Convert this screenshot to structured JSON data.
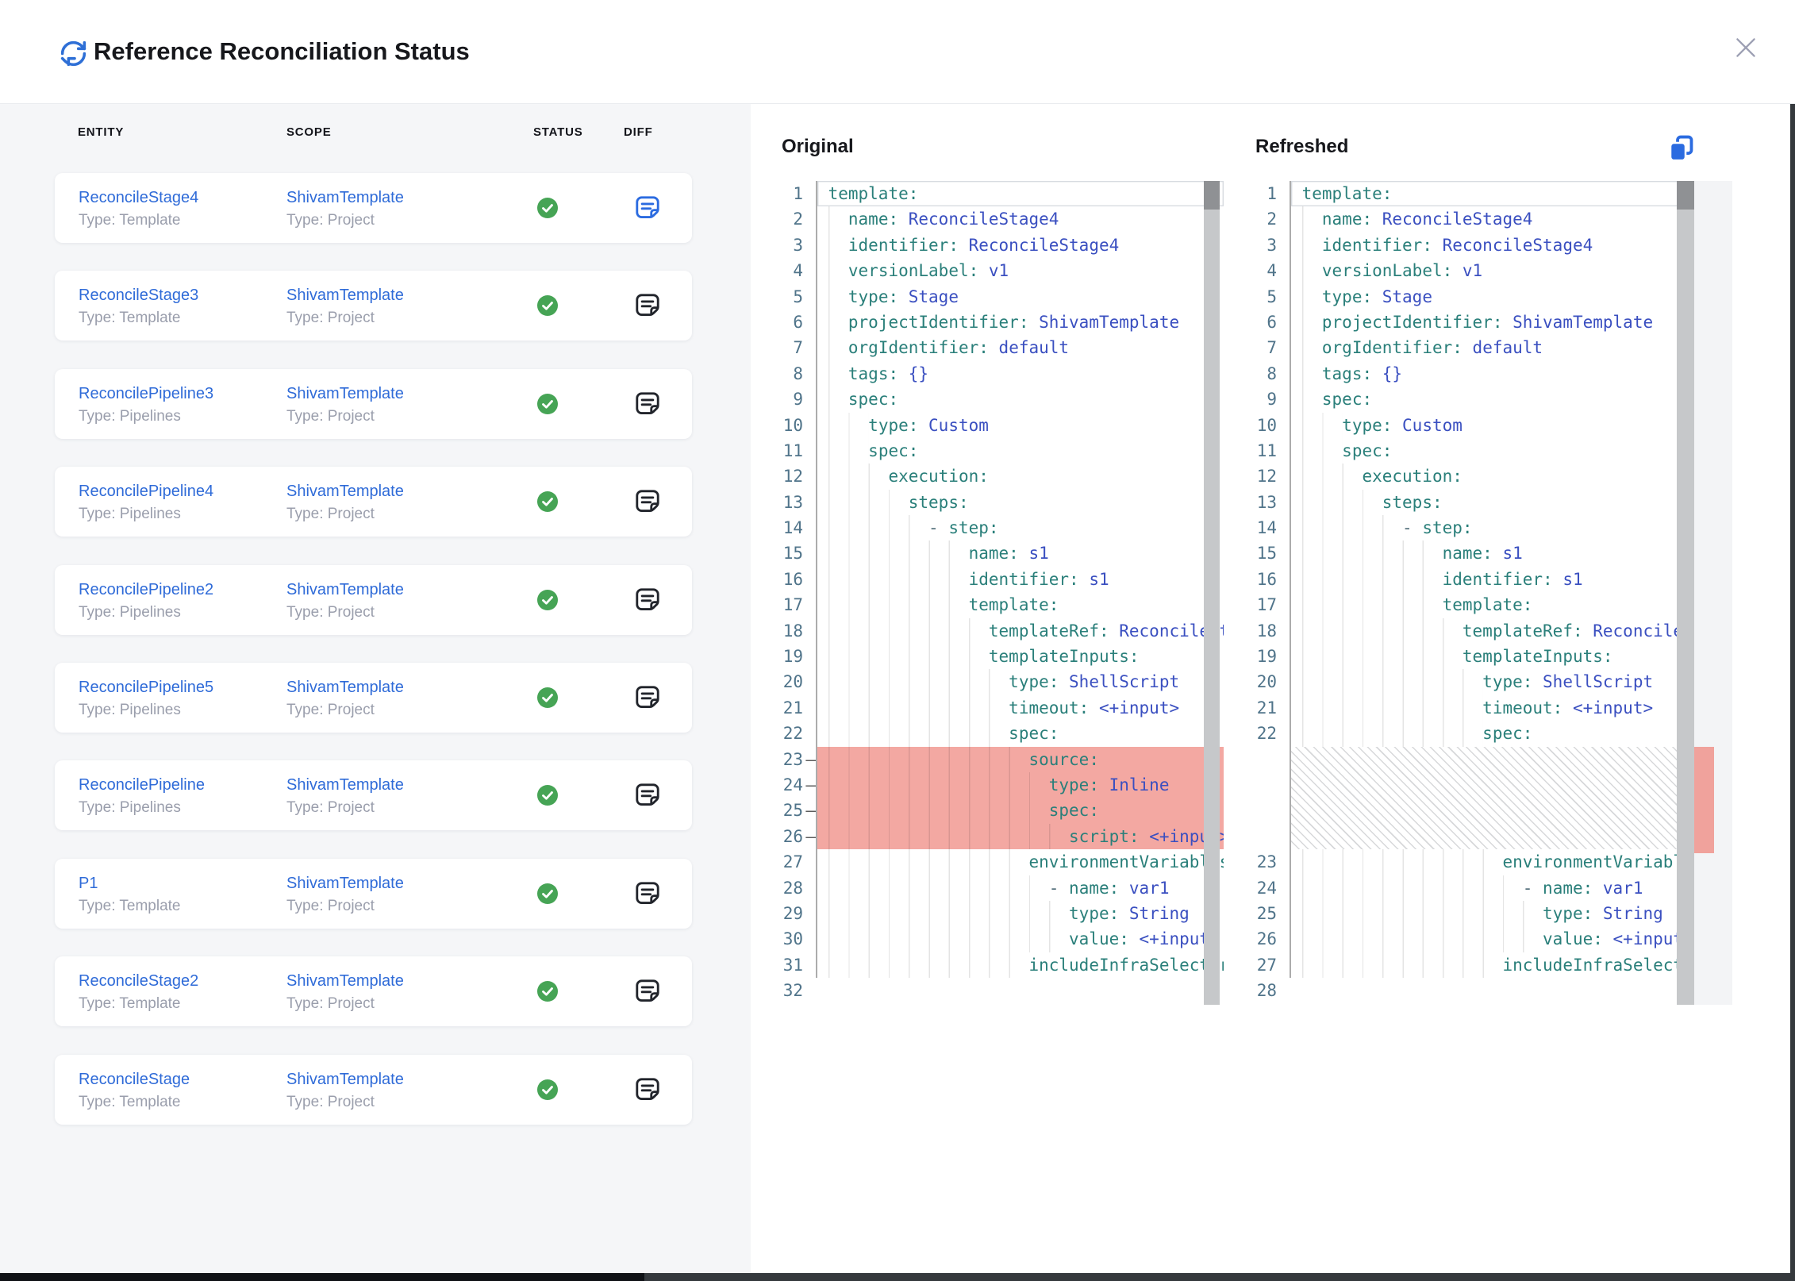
{
  "header": {
    "title": "Reference Reconciliation Status"
  },
  "icons": {
    "refresh": "refresh-icon",
    "close": "close-icon",
    "copy": "copy-icon",
    "status_ok": "check-circle-icon",
    "diff": "diff-note-icon"
  },
  "colors": {
    "accent_blue": "#2f6bd8",
    "diff_icon_active": "#2b6be0",
    "diff_icon_default": "#21242b",
    "status_green": "#46a455",
    "removed_line_bg": "#f3a8a2",
    "ruler_marker": "#f0a29c",
    "yaml_key": "#2a7f7a",
    "yaml_value": "#3a4fc0",
    "line_number": "#50748a",
    "left_panel_bg": "#f5f6f8",
    "muted_text": "#9a9eac"
  },
  "table": {
    "columns": [
      "ENTITY",
      "SCOPE",
      "STATUS",
      "DIFF"
    ],
    "rows": [
      {
        "entity": "ReconcileStage4",
        "entity_type": "Type: Template",
        "scope": "ShivamTemplate",
        "scope_type": "Type: Project",
        "status": "success",
        "diff_active": true
      },
      {
        "entity": "ReconcileStage3",
        "entity_type": "Type: Template",
        "scope": "ShivamTemplate",
        "scope_type": "Type: Project",
        "status": "success",
        "diff_active": false
      },
      {
        "entity": "ReconcilePipeline3",
        "entity_type": "Type: Pipelines",
        "scope": "ShivamTemplate",
        "scope_type": "Type: Project",
        "status": "success",
        "diff_active": false
      },
      {
        "entity": "ReconcilePipeline4",
        "entity_type": "Type: Pipelines",
        "scope": "ShivamTemplate",
        "scope_type": "Type: Project",
        "status": "success",
        "diff_active": false
      },
      {
        "entity": "ReconcilePipeline2",
        "entity_type": "Type: Pipelines",
        "scope": "ShivamTemplate",
        "scope_type": "Type: Project",
        "status": "success",
        "diff_active": false
      },
      {
        "entity": "ReconcilePipeline5",
        "entity_type": "Type: Pipelines",
        "scope": "ShivamTemplate",
        "scope_type": "Type: Project",
        "status": "success",
        "diff_active": false
      },
      {
        "entity": "ReconcilePipeline",
        "entity_type": "Type: Pipelines",
        "scope": "ShivamTemplate",
        "scope_type": "Type: Project",
        "status": "success",
        "diff_active": false
      },
      {
        "entity": "P1",
        "entity_type": "Type: Template",
        "scope": "ShivamTemplate",
        "scope_type": "Type: Project",
        "status": "success",
        "diff_active": false
      },
      {
        "entity": "ReconcileStage2",
        "entity_type": "Type: Template",
        "scope": "ShivamTemplate",
        "scope_type": "Type: Project",
        "status": "success",
        "diff_active": false
      },
      {
        "entity": "ReconcileStage",
        "entity_type": "Type: Template",
        "scope": "ShivamTemplate",
        "scope_type": "Type: Project",
        "status": "success",
        "diff_active": false
      }
    ]
  },
  "panels": {
    "removed_marker": "–",
    "original": {
      "title": "Original",
      "lines": [
        {
          "n": 1,
          "i": 0,
          "k": "template:",
          "cur": true
        },
        {
          "n": 2,
          "i": 2,
          "k": "name:",
          "v": "ReconcileStage4"
        },
        {
          "n": 3,
          "i": 2,
          "k": "identifier:",
          "v": "ReconcileStage4"
        },
        {
          "n": 4,
          "i": 2,
          "k": "versionLabel:",
          "v": "v1"
        },
        {
          "n": 5,
          "i": 2,
          "k": "type:",
          "v": "Stage"
        },
        {
          "n": 6,
          "i": 2,
          "k": "projectIdentifier:",
          "v": "ShivamTemplate"
        },
        {
          "n": 7,
          "i": 2,
          "k": "orgIdentifier:",
          "v": "default"
        },
        {
          "n": 8,
          "i": 2,
          "k": "tags:",
          "v": "{}"
        },
        {
          "n": 9,
          "i": 2,
          "k": "spec:"
        },
        {
          "n": 10,
          "i": 4,
          "k": "type:",
          "v": "Custom"
        },
        {
          "n": 11,
          "i": 4,
          "k": "spec:"
        },
        {
          "n": 12,
          "i": 6,
          "k": "execution:"
        },
        {
          "n": 13,
          "i": 8,
          "k": "steps:"
        },
        {
          "n": 14,
          "i": 10,
          "d": 1,
          "k": "step:"
        },
        {
          "n": 15,
          "i": 14,
          "k": "name:",
          "v": "s1"
        },
        {
          "n": 16,
          "i": 14,
          "k": "identifier:",
          "v": "s1"
        },
        {
          "n": 17,
          "i": 14,
          "k": "template:"
        },
        {
          "n": 18,
          "i": 16,
          "k": "templateRef:",
          "v": "ReconcileStep"
        },
        {
          "n": 19,
          "i": 16,
          "k": "templateInputs:"
        },
        {
          "n": 20,
          "i": 18,
          "k": "type:",
          "v": "ShellScript"
        },
        {
          "n": 21,
          "i": 18,
          "k": "timeout:",
          "v": "<+input>"
        },
        {
          "n": 22,
          "i": 18,
          "k": "spec:"
        },
        {
          "n": 23,
          "i": 20,
          "k": "source:",
          "r": 1
        },
        {
          "n": 24,
          "i": 22,
          "k": "type:",
          "v": "Inline",
          "r": 1
        },
        {
          "n": 25,
          "i": 22,
          "k": "spec:",
          "r": 1
        },
        {
          "n": 26,
          "i": 24,
          "k": "script:",
          "v": "<+input>",
          "r": 1
        },
        {
          "n": 27,
          "i": 20,
          "k": "environmentVariables:"
        },
        {
          "n": 28,
          "i": 22,
          "d": 1,
          "k": "name:",
          "v": "var1"
        },
        {
          "n": 29,
          "i": 24,
          "k": "type:",
          "v": "String"
        },
        {
          "n": 30,
          "i": 24,
          "k": "value:",
          "v": "<+input>"
        },
        {
          "n": 31,
          "i": 20,
          "k": "includeInfraSelectors:"
        },
        {
          "n": 32,
          "i": 0,
          "k": ""
        }
      ]
    },
    "refreshed": {
      "title": "Refreshed",
      "lines": [
        {
          "n": 1,
          "i": 0,
          "k": "template:",
          "cur": true
        },
        {
          "n": 2,
          "i": 2,
          "k": "name:",
          "v": "ReconcileStage4"
        },
        {
          "n": 3,
          "i": 2,
          "k": "identifier:",
          "v": "ReconcileStage4"
        },
        {
          "n": 4,
          "i": 2,
          "k": "versionLabel:",
          "v": "v1"
        },
        {
          "n": 5,
          "i": 2,
          "k": "type:",
          "v": "Stage"
        },
        {
          "n": 6,
          "i": 2,
          "k": "projectIdentifier:",
          "v": "ShivamTemplate"
        },
        {
          "n": 7,
          "i": 2,
          "k": "orgIdentifier:",
          "v": "default"
        },
        {
          "n": 8,
          "i": 2,
          "k": "tags:",
          "v": "{}"
        },
        {
          "n": 9,
          "i": 2,
          "k": "spec:"
        },
        {
          "n": 10,
          "i": 4,
          "k": "type:",
          "v": "Custom"
        },
        {
          "n": 11,
          "i": 4,
          "k": "spec:"
        },
        {
          "n": 12,
          "i": 6,
          "k": "execution:"
        },
        {
          "n": 13,
          "i": 8,
          "k": "steps:"
        },
        {
          "n": 14,
          "i": 10,
          "d": 1,
          "k": "step:"
        },
        {
          "n": 15,
          "i": 14,
          "k": "name:",
          "v": "s1"
        },
        {
          "n": 16,
          "i": 14,
          "k": "identifier:",
          "v": "s1"
        },
        {
          "n": 17,
          "i": 14,
          "k": "template:"
        },
        {
          "n": 18,
          "i": 16,
          "k": "templateRef:",
          "v": "ReconcileStep"
        },
        {
          "n": 19,
          "i": 16,
          "k": "templateInputs:"
        },
        {
          "n": 20,
          "i": 18,
          "k": "type:",
          "v": "ShellScript"
        },
        {
          "n": 21,
          "i": 18,
          "k": "timeout:",
          "v": "<+input>"
        },
        {
          "n": 22,
          "i": 18,
          "k": "spec:"
        },
        {
          "gap": 4
        },
        {
          "n": 23,
          "i": 20,
          "k": "environmentVariables:"
        },
        {
          "n": 24,
          "i": 22,
          "d": 1,
          "k": "name:",
          "v": "var1"
        },
        {
          "n": 25,
          "i": 24,
          "k": "type:",
          "v": "String"
        },
        {
          "n": 26,
          "i": 24,
          "k": "value:",
          "v": "<+input>"
        },
        {
          "n": 27,
          "i": 20,
          "k": "includeInfraSelectors:"
        },
        {
          "n": 28,
          "i": 0,
          "k": ""
        }
      ]
    }
  }
}
